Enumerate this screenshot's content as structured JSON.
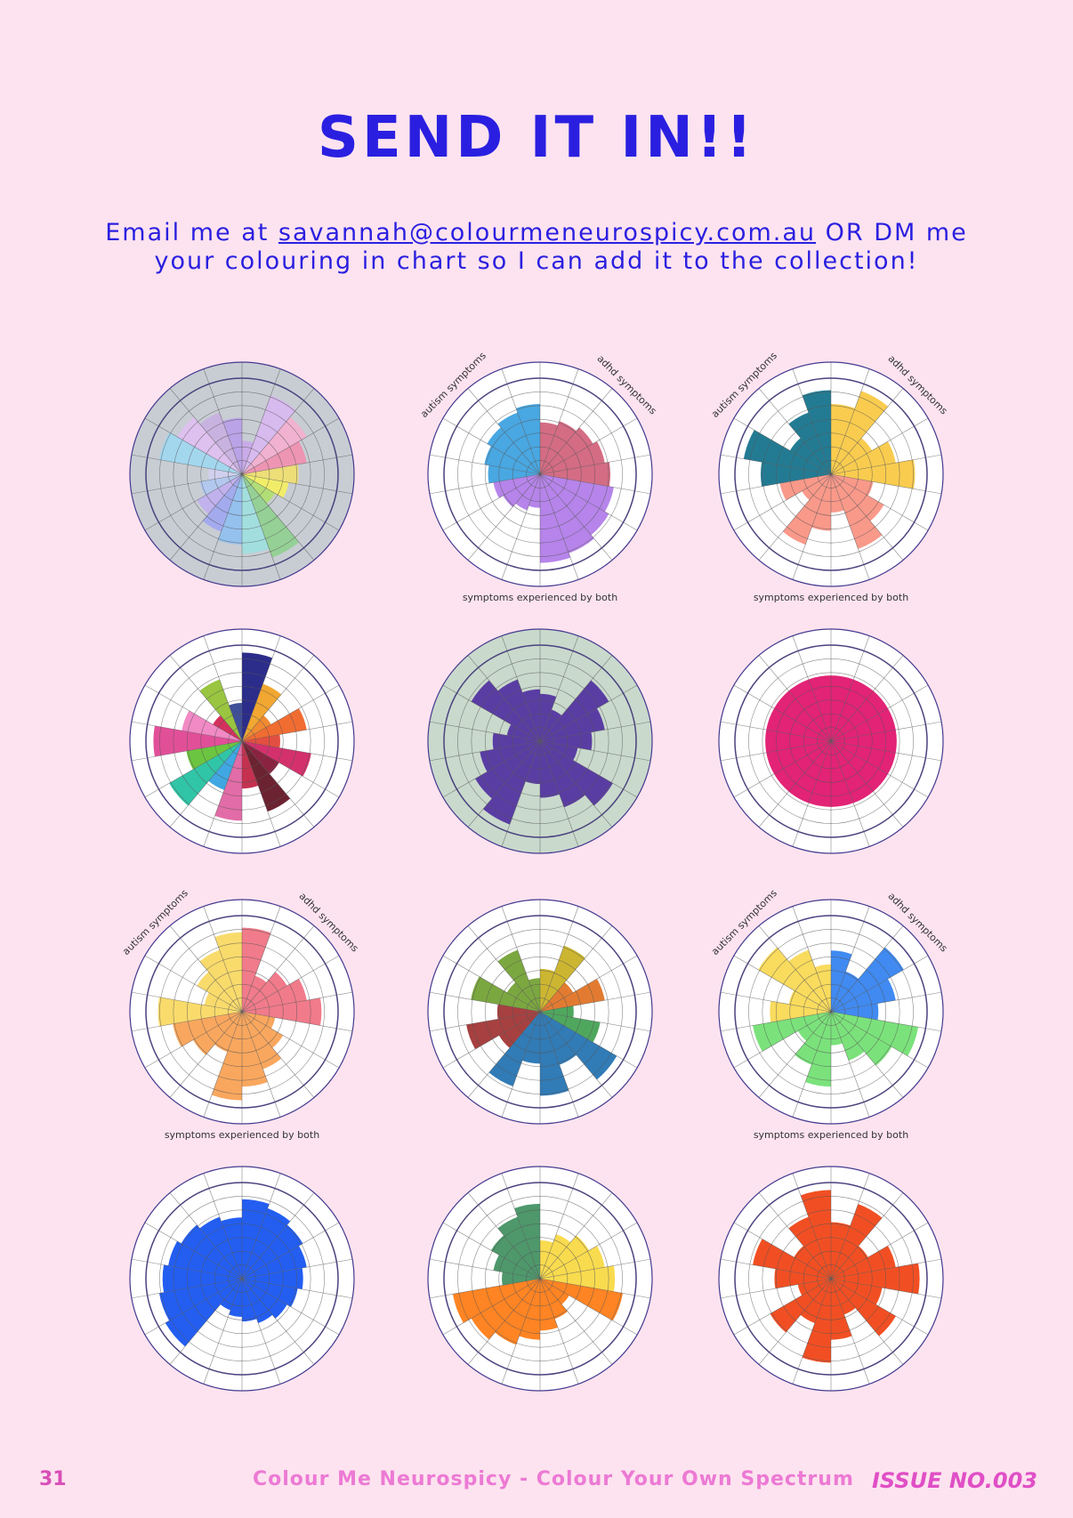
{
  "header": {
    "title": "SEND IT IN!!"
  },
  "email": {
    "prefix": "Email me at ",
    "address": "savannah@colourmeneurospicy.com.au",
    "suffix": " OR DM me",
    "line2": "your colouring in chart so I can add it to the collection!"
  },
  "chart_labels": {
    "left": "autism symptoms",
    "right": "adhd symptoms",
    "bottom": "symptoms experienced by both"
  },
  "footer": {
    "page": "31",
    "center": "Colour Me Neurospicy - Colour Your Own Spectrum",
    "issue": "ISSUE NO.003"
  }
}
